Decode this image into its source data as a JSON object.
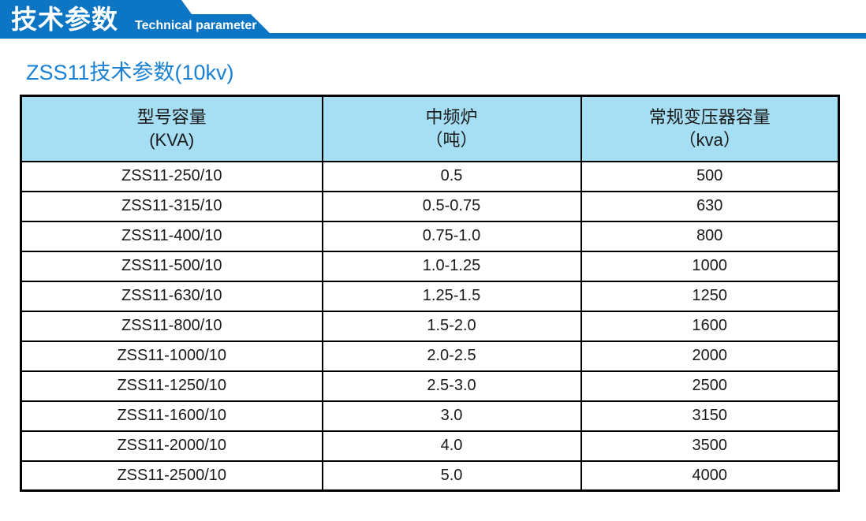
{
  "colors": {
    "banner_blue": "#0d76c4",
    "header_bg": "#a6def3",
    "subtitle_blue": "#1a80d2"
  },
  "banner": {
    "title_cn": "技术参数",
    "title_en": "Technical parameter"
  },
  "subtitle": "ZSS11技术参数(10kv)",
  "table": {
    "header": {
      "col1_line1": "型号容量",
      "col1_line2": "(KVA)",
      "col2_line1": "中频炉",
      "col2_line2": "（吨）",
      "col3_line1": "常规变压器容量",
      "col3_line2": "（kva）"
    },
    "rows": [
      {
        "model": "ZSS11-250/10",
        "furnace": "0.5",
        "capacity": "500"
      },
      {
        "model": "ZSS11-315/10",
        "furnace": "0.5-0.75",
        "capacity": "630"
      },
      {
        "model": "ZSS11-400/10",
        "furnace": "0.75-1.0",
        "capacity": "800"
      },
      {
        "model": "ZSS11-500/10",
        "furnace": "1.0-1.25",
        "capacity": "1000"
      },
      {
        "model": "ZSS11-630/10",
        "furnace": "1.25-1.5",
        "capacity": "1250"
      },
      {
        "model": "ZSS11-800/10",
        "furnace": "1.5-2.0",
        "capacity": "1600"
      },
      {
        "model": "ZSS11-1000/10",
        "furnace": "2.0-2.5",
        "capacity": "2000"
      },
      {
        "model": "ZSS11-1250/10",
        "furnace": "2.5-3.0",
        "capacity": "2500"
      },
      {
        "model": "ZSS11-1600/10",
        "furnace": "3.0",
        "capacity": "3150"
      },
      {
        "model": "ZSS11-2000/10",
        "furnace": "4.0",
        "capacity": "3500"
      },
      {
        "model": "ZSS11-2500/10",
        "furnace": "5.0",
        "capacity": "4000"
      }
    ]
  }
}
